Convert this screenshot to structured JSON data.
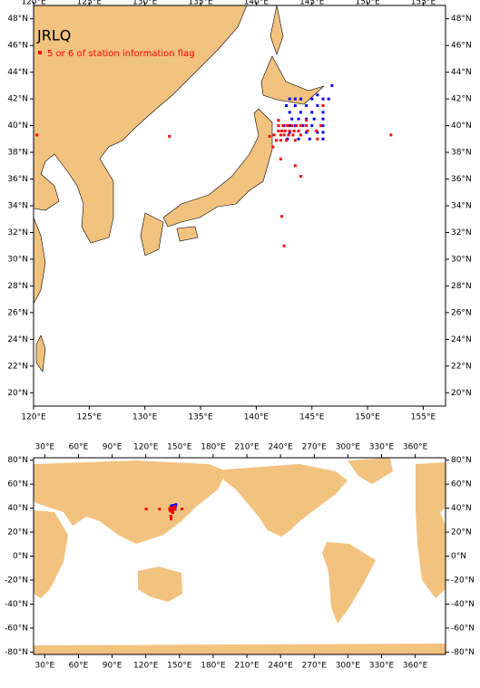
{
  "maps": [
    {
      "title": "JRLQ",
      "legend": "5 or 6 of station information flag",
      "xlim": [
        120,
        157
      ],
      "ylim": [
        19,
        49
      ],
      "xticks": [
        {
          "value": 120,
          "label": "120°E"
        },
        {
          "value": 125,
          "label": "125°E"
        },
        {
          "value": 130,
          "label": "130°E"
        },
        {
          "value": 135,
          "label": "135°E"
        },
        {
          "value": 140,
          "label": "140°E"
        },
        {
          "value": 145,
          "label": "145°E"
        },
        {
          "value": 150,
          "label": "150°E"
        },
        {
          "value": 155,
          "label": "155°E"
        }
      ],
      "yticks": [
        {
          "value": 20,
          "label": "20°N"
        },
        {
          "value": 22,
          "label": "22°N"
        },
        {
          "value": 24,
          "label": "24°N"
        },
        {
          "value": 26,
          "label": "26°N"
        },
        {
          "value": 28,
          "label": "28°N"
        },
        {
          "value": 30,
          "label": "30°N"
        },
        {
          "value": 32,
          "label": "32°N"
        },
        {
          "value": 34,
          "label": "34°N"
        },
        {
          "value": 36,
          "label": "36°N"
        },
        {
          "value": 38,
          "label": "38°N"
        },
        {
          "value": 40,
          "label": "40°N"
        },
        {
          "value": 42,
          "label": "42°N"
        },
        {
          "value": 44,
          "label": "44°N"
        },
        {
          "value": 46,
          "label": "46°N"
        },
        {
          "value": 48,
          "label": "48°N"
        }
      ]
    },
    {
      "xlim": [
        20,
        387
      ],
      "ylim": [
        -82,
        82
      ],
      "xticks": [
        {
          "value": 30,
          "label": "30°E"
        },
        {
          "value": 60,
          "label": "60°E"
        },
        {
          "value": 90,
          "label": "90°E"
        },
        {
          "value": 120,
          "label": "120°E"
        },
        {
          "value": 150,
          "label": "150°E"
        },
        {
          "value": 180,
          "label": "180°E"
        },
        {
          "value": 210,
          "label": "210°E"
        },
        {
          "value": 240,
          "label": "240°E"
        },
        {
          "value": 270,
          "label": "270°E"
        },
        {
          "value": 300,
          "label": "300°E"
        },
        {
          "value": 330,
          "label": "330°E"
        },
        {
          "value": 360,
          "label": "360°E"
        }
      ],
      "yticks": [
        {
          "value": -80,
          "label": "-80°N"
        },
        {
          "value": -60,
          "label": "-60°N"
        },
        {
          "value": -40,
          "label": "-40°N"
        },
        {
          "value": -20,
          "label": "-20°N"
        },
        {
          "value": 0,
          "label": "0°N"
        },
        {
          "value": 20,
          "label": "20°N"
        },
        {
          "value": 40,
          "label": "40°N"
        },
        {
          "value": 60,
          "label": "60°N"
        },
        {
          "value": 80,
          "label": "80°N"
        }
      ]
    }
  ],
  "stations": [
    {
      "color": "#0000ff",
      "lon": [
        143,
        143.5,
        144,
        145,
        146,
        146.5,
        142.7,
        143.5,
        144.5,
        145.5,
        143,
        144,
        145,
        146,
        143.2,
        143.8,
        144.5,
        145.2,
        146,
        142.5,
        143,
        143.5,
        144.2,
        145,
        146,
        143,
        144.5,
        145.5,
        146,
        142.8,
        143.8,
        144.8,
        146,
        146.8,
        145.5
      ],
      "lat": [
        42,
        42,
        42,
        42,
        42,
        42,
        41.5,
        41.5,
        41.5,
        41.5,
        41,
        41,
        41,
        41,
        40.5,
        40.5,
        40.5,
        40.5,
        40.5,
        40,
        40,
        40,
        40,
        40,
        40,
        39.5,
        39.5,
        39.5,
        39.5,
        39,
        39,
        39,
        39,
        43,
        42.3
      ]
    },
    {
      "name": "5 or 6 of station information flag",
      "color": "#ff0000",
      "lon": [
        142,
        142.4,
        142.8,
        143.2,
        143.6,
        144,
        144.5,
        142,
        142.3,
        142.6,
        143,
        143.4,
        143.8,
        144.6,
        145.4,
        141.6,
        142.2,
        142.5,
        142.9,
        143.3,
        144,
        141.8,
        142.2,
        142.7,
        143.5,
        145.5,
        141.2,
        141.5,
        142.2,
        143.5,
        144,
        142.3,
        142.5,
        120.3,
        132.2,
        152.1,
        146,
        142,
        144.5,
        145.8
      ],
      "lat": [
        40,
        40,
        40,
        40,
        40,
        40,
        40,
        39.6,
        39.6,
        39.6,
        39.6,
        39.6,
        39.6,
        39.6,
        39.6,
        39.3,
        39.3,
        39.3,
        39.3,
        39.3,
        39.3,
        38.9,
        38.9,
        38.9,
        38.9,
        39,
        39.2,
        38.4,
        37.5,
        37,
        36.2,
        33.2,
        31,
        39.3,
        39.2,
        39.3,
        41.5,
        40.4,
        40.4,
        40
      ]
    }
  ]
}
